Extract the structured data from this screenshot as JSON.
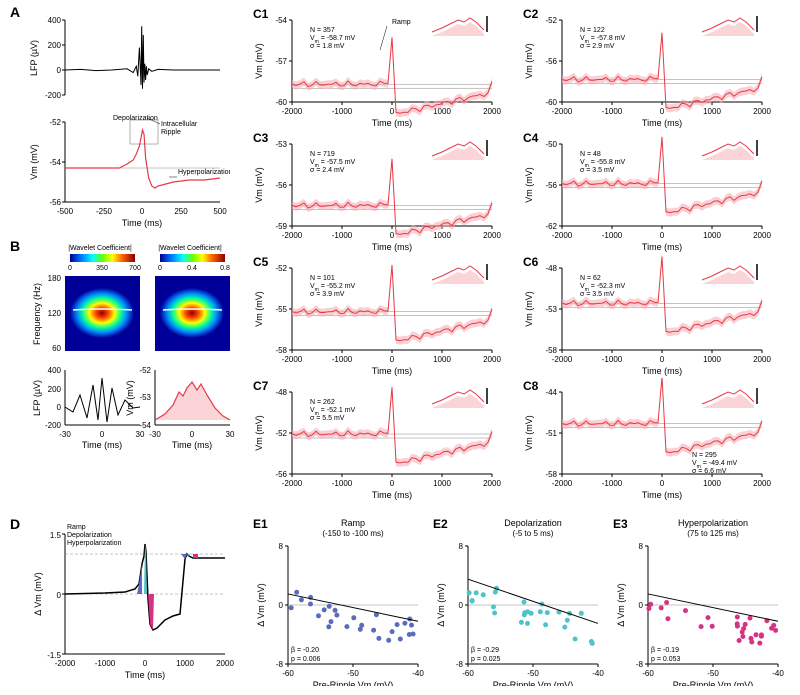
{
  "colors": {
    "lfp_line": "#000000",
    "vm_line": "#e63946",
    "vm_fill": "#f5a9b0",
    "axis": "#000000",
    "grid": "#888888",
    "ramp": "#5b6cbf",
    "depol": "#4fc3c7",
    "hyper": "#d63384",
    "scatter_ramp": "#5b6cbf",
    "scatter_depol": "#4fc3c7",
    "scatter_hyper": "#d63384",
    "wavelet_low": "#0844aa",
    "wavelet_mid": "#ff4400",
    "wavelet_high": "#aa0000"
  },
  "panelA": {
    "label": "A",
    "lfp": {
      "ylabel": "LFP (µV)",
      "xlabel": "Time (ms)",
      "xlim": [
        -500,
        500
      ],
      "ylim": [
        -200,
        400
      ],
      "yticks": [
        -200,
        0,
        200,
        400
      ],
      "xticks": [
        -500,
        -250,
        0,
        250,
        500
      ],
      "data_x": [
        -500,
        -400,
        -300,
        -200,
        -100,
        -60,
        -40,
        -30,
        -20,
        -10,
        -5,
        0,
        5,
        10,
        15,
        20,
        25,
        30,
        40,
        60,
        100,
        200,
        300,
        400,
        500
      ],
      "data_y": [
        0,
        5,
        -5,
        0,
        10,
        -20,
        30,
        -50,
        180,
        -120,
        350,
        -150,
        280,
        -100,
        50,
        -80,
        30,
        -40,
        10,
        -10,
        5,
        0,
        0,
        0,
        0
      ]
    },
    "vm": {
      "ylabel": "Vm (mV)",
      "xlabel": "Time (ms)",
      "xlim": [
        -500,
        500
      ],
      "ylim": [
        -56,
        -52
      ],
      "yticks": [
        -56,
        -54,
        -52
      ],
      "xticks": [
        -500,
        -250,
        0,
        250,
        500
      ],
      "data_x": [
        -500,
        -400,
        -300,
        -200,
        -150,
        -100,
        -60,
        -40,
        -20,
        -10,
        0,
        10,
        20,
        40,
        60,
        80,
        100,
        150,
        200,
        300,
        400,
        500
      ],
      "data_y": [
        -54.3,
        -54.3,
        -54.3,
        -54.3,
        -54.3,
        -54.1,
        -53.9,
        -53.6,
        -53.2,
        -52.8,
        -52.4,
        -52.6,
        -53.8,
        -54.8,
        -55.2,
        -55.3,
        -55.2,
        -55.1,
        -55.0,
        -54.9,
        -54.9,
        -54.8
      ],
      "annotations": {
        "depol": "Depolarization",
        "intra": "Intracellular Ripple",
        "hyper": "Hyperpolarization"
      },
      "baseline": -54.3
    }
  },
  "panelB": {
    "label": "B",
    "wavelet_title_left": "|Wavelet Coefficient|",
    "wavelet_title_right": "|Wavelet Coefficient|",
    "cbar_left": [
      0,
      350,
      700
    ],
    "cbar_right": [
      0,
      0.4,
      0.8
    ],
    "ylabel": "Frequency (Hz)",
    "yticks": [
      60,
      120,
      180
    ],
    "xlim": [
      -30,
      30
    ],
    "xticks": [
      -30,
      0,
      30
    ],
    "lfp_bottom": {
      "ylabel": "LFP (µV)",
      "ylim": [
        -200,
        400
      ],
      "yticks": [
        -200,
        0,
        200,
        400
      ]
    },
    "vm_bottom": {
      "ylabel": "Vm (mV)",
      "ylim": [
        -54,
        -52
      ],
      "yticks": [
        -54,
        -53,
        -52
      ]
    },
    "xlabel": "Time (ms)"
  },
  "panelC": {
    "cells": [
      {
        "id": "C1",
        "N": 357,
        "Vm": -58.7,
        "sigma": 1.8,
        "ylim": [
          -60,
          -54
        ],
        "yticks": [
          -60,
          -57,
          -54
        ],
        "ramp_label": "Ramp"
      },
      {
        "id": "C2",
        "N": 122,
        "Vm": -57.8,
        "sigma": 2.9,
        "ylim": [
          -60,
          -52
        ],
        "yticks": [
          -60,
          -56,
          -52
        ]
      },
      {
        "id": "C3",
        "N": 719,
        "Vm": -57.5,
        "sigma": 2.4,
        "ylim": [
          -59,
          -53
        ],
        "yticks": [
          -59,
          -56,
          -53
        ]
      },
      {
        "id": "C4",
        "N": 48,
        "Vm": -55.8,
        "sigma": 3.5,
        "ylim": [
          -62,
          -50
        ],
        "yticks": [
          -62,
          -56,
          -50
        ]
      },
      {
        "id": "C5",
        "N": 101,
        "Vm": -55.2,
        "sigma": 3.9,
        "ylim": [
          -58,
          -52
        ],
        "yticks": [
          -58,
          -55,
          -52
        ]
      },
      {
        "id": "C6",
        "N": 62,
        "Vm": -52.3,
        "sigma": 3.5,
        "ylim": [
          -58,
          -48
        ],
        "yticks": [
          -58,
          -53,
          -48
        ]
      },
      {
        "id": "C7",
        "N": 262,
        "Vm": -52.1,
        "sigma": 5.5,
        "ylim": [
          -56,
          -48
        ],
        "yticks": [
          -56,
          -52,
          -48
        ]
      },
      {
        "id": "C8",
        "N": 295,
        "Vm": -49.4,
        "sigma": 6.6,
        "ylim": [
          -58,
          -44
        ],
        "yticks": [
          -58,
          -51,
          -44
        ]
      }
    ],
    "xlim": [
      -2000,
      2000
    ],
    "xticks": [
      -2000,
      -1000,
      0,
      1000,
      2000
    ],
    "xlabel": "Time (ms)",
    "ylabel": "Vm (mV)"
  },
  "panelD": {
    "label": "D",
    "ylabel": "Δ Vm (mV)",
    "xlabel": "Time (ms)",
    "xlim": [
      -2000,
      2000
    ],
    "ylim": [
      -1.5,
      1.5
    ],
    "yticks": [
      -1.5,
      0,
      1.5
    ],
    "xticks": [
      -2000,
      -1000,
      0,
      1000,
      2000
    ],
    "legend": {
      "ramp": "Ramp",
      "depol": "Depolarization",
      "hyper": "Hyperpolarization"
    },
    "baselines": [
      0,
      1.0
    ]
  },
  "panelE": {
    "xlim": [
      -60,
      -40
    ],
    "ylim": [
      -8,
      8
    ],
    "yticks": [
      -8,
      0,
      8
    ],
    "xticks": [
      -60,
      -50,
      -40
    ],
    "xlabel": "Pre-Ripple Vm (mV)",
    "ylabel": "Δ Vm (mV)",
    "sub": [
      {
        "id": "E1",
        "title": "Ramp",
        "subtitle": "(-150 to -100 ms)",
        "beta": -0.2,
        "p": 0.006,
        "color": "#5b6cbf"
      },
      {
        "id": "E2",
        "title": "Depolarization",
        "subtitle": "(-5 to 5 ms)",
        "beta": -0.29,
        "p": 0.025,
        "color": "#4fc3c7"
      },
      {
        "id": "E3",
        "title": "Hyperpolarization",
        "subtitle": "(75 to 125 ms)",
        "beta": -0.19,
        "p": 0.053,
        "color": "#d63384"
      }
    ]
  }
}
